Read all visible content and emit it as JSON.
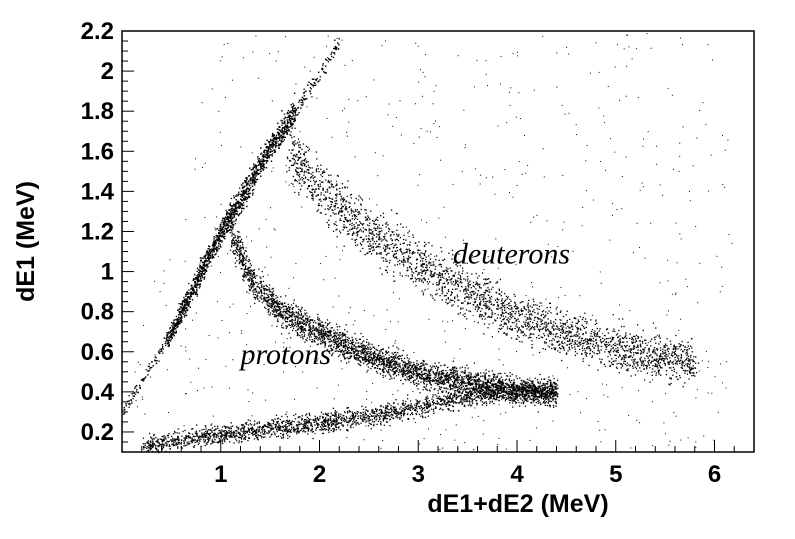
{
  "chart_data": {
    "type": "scatter",
    "title": "",
    "xlabel": "dE1+dE2 (MeV)",
    "ylabel": "dE1 (MeV)",
    "xlim": [
      0,
      6.4
    ],
    "ylim": [
      0.1,
      2.2
    ],
    "x_ticks": [
      1,
      2,
      3,
      4,
      5,
      6
    ],
    "y_ticks": [
      0.2,
      0.4,
      0.6,
      0.8,
      1,
      1.2,
      1.4,
      1.6,
      1.8,
      2,
      2.2
    ],
    "x_tick_labels": [
      "1",
      "2",
      "3",
      "4",
      "5",
      "6"
    ],
    "y_tick_labels": [
      "0.2",
      "0.4",
      "0.6",
      "0.8",
      "1",
      "1.2",
      "1.4",
      "1.6",
      "1.8",
      "2",
      "2.2"
    ],
    "grid": false,
    "legend": "none",
    "marker_color": "#000000",
    "annotations": [
      {
        "text": "protons",
        "x": 1.2,
        "y": 0.54
      },
      {
        "text": "deuterons",
        "x": 3.35,
        "y": 1.04
      }
    ],
    "series": [
      {
        "band": "diagonal",
        "x": [
          0.0,
          0.5,
          1.0,
          1.5,
          1.75,
          2.2
        ],
        "y": [
          0.3,
          0.7,
          1.2,
          1.62,
          1.8,
          2.15
        ]
      },
      {
        "band": "proton-hyperbola",
        "x": [
          1.1,
          1.3,
          1.6,
          2.0,
          2.5,
          3.0,
          3.5,
          4.0,
          4.4
        ],
        "y": [
          1.2,
          0.96,
          0.8,
          0.7,
          0.58,
          0.49,
          0.45,
          0.41,
          0.39
        ]
      },
      {
        "band": "deuteron-hyperbola",
        "x": [
          1.7,
          2.0,
          2.5,
          3.0,
          3.5,
          4.0,
          4.5,
          5.0,
          5.5,
          5.8
        ],
        "y": [
          1.6,
          1.42,
          1.2,
          1.04,
          0.9,
          0.78,
          0.69,
          0.62,
          0.57,
          0.55
        ]
      },
      {
        "band": "lower-branch",
        "x": [
          0.2,
          0.8,
          1.2,
          1.8,
          2.5,
          3.0,
          3.5,
          4.0,
          4.4
        ],
        "y": [
          0.13,
          0.18,
          0.2,
          0.24,
          0.28,
          0.33,
          0.38,
          0.41,
          0.42
        ]
      }
    ]
  }
}
